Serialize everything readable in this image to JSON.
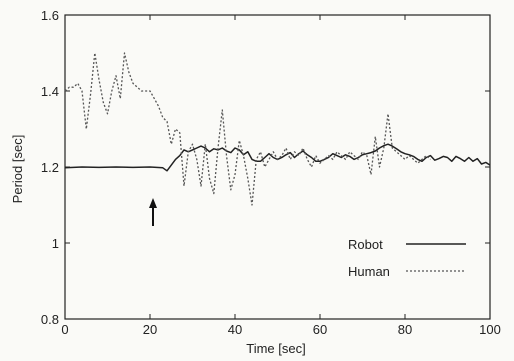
{
  "chart_data": {
    "type": "line",
    "xlabel": "Time [sec]",
    "ylabel": "Period [sec]",
    "xlim": [
      0,
      100
    ],
    "ylim": [
      0.8,
      1.6
    ],
    "x_ticks": [
      "0",
      "20",
      "40",
      "60",
      "80",
      "100"
    ],
    "y_ticks": [
      "0.8",
      "1",
      "1.2",
      "1.4",
      "1.6"
    ],
    "grid": false,
    "legend_position": "bottom-right",
    "annotation": "↑",
    "annotation_x": 24,
    "series": [
      {
        "name": "Robot",
        "style": "solid",
        "color": "#222222",
        "points": [
          [
            0,
            1.198
          ],
          [
            4,
            1.2
          ],
          [
            8,
            1.199
          ],
          [
            12,
            1.2
          ],
          [
            16,
            1.199
          ],
          [
            20,
            1.2
          ],
          [
            23,
            1.198
          ],
          [
            24,
            1.19
          ],
          [
            25,
            1.205
          ],
          [
            26,
            1.22
          ],
          [
            27,
            1.23
          ],
          [
            28,
            1.245
          ],
          [
            29,
            1.24
          ],
          [
            30,
            1.245
          ],
          [
            31,
            1.25
          ],
          [
            32,
            1.255
          ],
          [
            33,
            1.25
          ],
          [
            34,
            1.24
          ],
          [
            35,
            1.248
          ],
          [
            36,
            1.245
          ],
          [
            37,
            1.25
          ],
          [
            38,
            1.242
          ],
          [
            39,
            1.238
          ],
          [
            40,
            1.25
          ],
          [
            41,
            1.245
          ],
          [
            42,
            1.232
          ],
          [
            43,
            1.24
          ],
          [
            44,
            1.22
          ],
          [
            45,
            1.215
          ],
          [
            46,
            1.215
          ],
          [
            47,
            1.225
          ],
          [
            48,
            1.235
          ],
          [
            49,
            1.225
          ],
          [
            50,
            1.22
          ],
          [
            51,
            1.225
          ],
          [
            52,
            1.232
          ],
          [
            53,
            1.238
          ],
          [
            54,
            1.225
          ],
          [
            55,
            1.235
          ],
          [
            56,
            1.242
          ],
          [
            57,
            1.232
          ],
          [
            58,
            1.225
          ],
          [
            59,
            1.215
          ],
          [
            60,
            1.215
          ],
          [
            61,
            1.22
          ],
          [
            62,
            1.225
          ],
          [
            63,
            1.235
          ],
          [
            64,
            1.23
          ],
          [
            65,
            1.225
          ],
          [
            66,
            1.232
          ],
          [
            67,
            1.228
          ],
          [
            68,
            1.22
          ],
          [
            69,
            1.225
          ],
          [
            70,
            1.232
          ],
          [
            71,
            1.235
          ],
          [
            72,
            1.238
          ],
          [
            73,
            1.242
          ],
          [
            74,
            1.25
          ],
          [
            75,
            1.256
          ],
          [
            76,
            1.26
          ],
          [
            77,
            1.255
          ],
          [
            78,
            1.248
          ],
          [
            79,
            1.24
          ],
          [
            80,
            1.235
          ],
          [
            81,
            1.232
          ],
          [
            82,
            1.228
          ],
          [
            83,
            1.22
          ],
          [
            84,
            1.215
          ],
          [
            85,
            1.225
          ],
          [
            86,
            1.23
          ],
          [
            87,
            1.218
          ],
          [
            88,
            1.222
          ],
          [
            89,
            1.228
          ],
          [
            90,
            1.225
          ],
          [
            91,
            1.215
          ],
          [
            92,
            1.228
          ],
          [
            93,
            1.222
          ],
          [
            94,
            1.215
          ],
          [
            95,
            1.225
          ],
          [
            96,
            1.215
          ],
          [
            97,
            1.222
          ],
          [
            98,
            1.208
          ],
          [
            99,
            1.212
          ],
          [
            100,
            1.205
          ]
        ]
      },
      {
        "name": "Human",
        "style": "dotted",
        "color": "#555555",
        "points": [
          [
            0,
            1.4
          ],
          [
            1,
            1.41
          ],
          [
            2,
            1.41
          ],
          [
            3,
            1.42
          ],
          [
            4,
            1.4
          ],
          [
            5,
            1.3
          ],
          [
            6,
            1.39
          ],
          [
            7,
            1.5
          ],
          [
            8,
            1.43
          ],
          [
            9,
            1.37
          ],
          [
            10,
            1.34
          ],
          [
            11,
            1.4
          ],
          [
            12,
            1.44
          ],
          [
            13,
            1.38
          ],
          [
            14,
            1.5
          ],
          [
            15,
            1.45
          ],
          [
            16,
            1.42
          ],
          [
            17,
            1.41
          ],
          [
            18,
            1.4
          ],
          [
            19,
            1.4
          ],
          [
            20,
            1.4
          ],
          [
            21,
            1.38
          ],
          [
            22,
            1.36
          ],
          [
            23,
            1.33
          ],
          [
            24,
            1.32
          ],
          [
            25,
            1.26
          ],
          [
            26,
            1.3
          ],
          [
            27,
            1.29
          ],
          [
            28,
            1.15
          ],
          [
            29,
            1.24
          ],
          [
            30,
            1.26
          ],
          [
            31,
            1.22
          ],
          [
            32,
            1.15
          ],
          [
            33,
            1.26
          ],
          [
            34,
            1.17
          ],
          [
            35,
            1.13
          ],
          [
            36,
            1.25
          ],
          [
            37,
            1.35
          ],
          [
            38,
            1.23
          ],
          [
            39,
            1.14
          ],
          [
            40,
            1.18
          ],
          [
            41,
            1.27
          ],
          [
            42,
            1.23
          ],
          [
            43,
            1.17
          ],
          [
            44,
            1.1
          ],
          [
            45,
            1.22
          ],
          [
            46,
            1.24
          ],
          [
            47,
            1.2
          ],
          [
            48,
            1.22
          ],
          [
            49,
            1.24
          ],
          [
            50,
            1.22
          ],
          [
            51,
            1.23
          ],
          [
            52,
            1.25
          ],
          [
            53,
            1.22
          ],
          [
            54,
            1.24
          ],
          [
            55,
            1.23
          ],
          [
            56,
            1.25
          ],
          [
            57,
            1.22
          ],
          [
            58,
            1.2
          ],
          [
            59,
            1.23
          ],
          [
            60,
            1.21
          ],
          [
            61,
            1.22
          ],
          [
            62,
            1.23
          ],
          [
            63,
            1.22
          ],
          [
            64,
            1.24
          ],
          [
            65,
            1.23
          ],
          [
            66,
            1.22
          ],
          [
            67,
            1.24
          ],
          [
            68,
            1.23
          ],
          [
            69,
            1.22
          ],
          [
            70,
            1.24
          ],
          [
            71,
            1.23
          ],
          [
            72,
            1.18
          ],
          [
            73,
            1.28
          ],
          [
            74,
            1.2
          ],
          [
            75,
            1.25
          ],
          [
            76,
            1.34
          ],
          [
            77,
            1.25
          ],
          [
            78,
            1.24
          ],
          [
            79,
            1.23
          ],
          [
            80,
            1.22
          ],
          [
            81,
            1.23
          ],
          [
            82,
            1.22
          ],
          [
            83,
            1.21
          ],
          [
            84,
            1.22
          ],
          [
            85,
            1.23
          ],
          [
            86,
            1.22
          ]
        ]
      }
    ]
  }
}
